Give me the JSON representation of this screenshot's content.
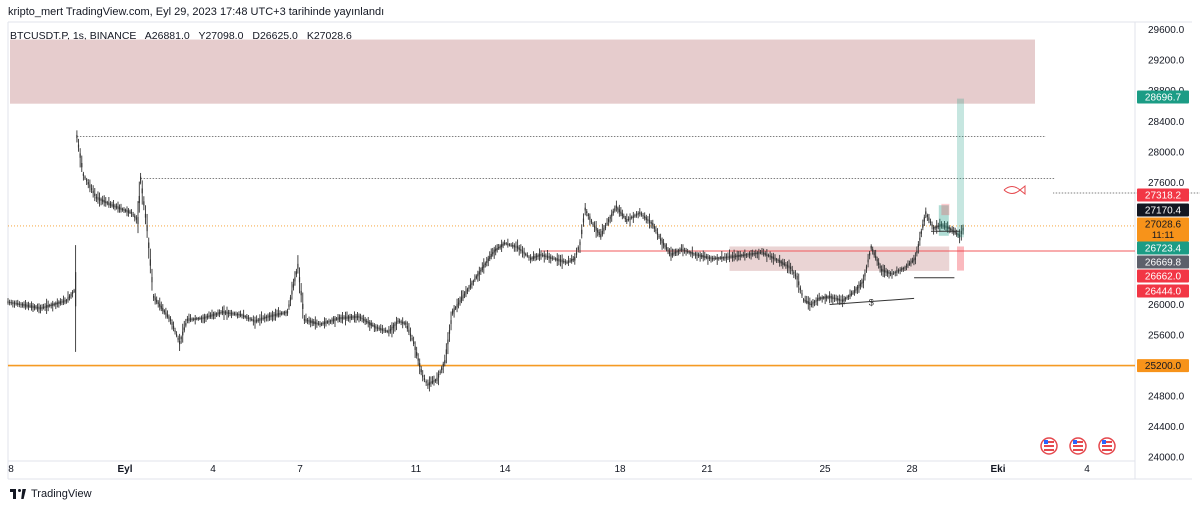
{
  "header": {
    "publisher": "kripto_mert TradingView.com, Eyl 29, 2023 17:48 UTC+3 tarihinde yayınlandı"
  },
  "legend": {
    "symbol": "BTCUSDT.P, 1s, BINANCE",
    "open": "A26881.0",
    "high": "Y27098.0",
    "low": "D26625.0",
    "close": "K27028.6"
  },
  "footer": {
    "brand": "TradingView"
  },
  "colors": {
    "candle": "#333333",
    "zone_fill": "#e6cccd",
    "support": "#f59a23",
    "red_line": "#f0585b",
    "green": "#1b9c85",
    "price_dotted": "#f59a23"
  },
  "chart_data": {
    "type": "candlestick",
    "x_tick_labels": [
      "8",
      "Eyl",
      "4",
      "7",
      "11",
      "14",
      "18",
      "21",
      "25",
      "28",
      "Eki",
      "4"
    ],
    "y_ticks": [
      24000,
      24400,
      24800,
      25200,
      25600,
      26000,
      26400,
      26800,
      27200,
      27600,
      28000,
      28400,
      28800,
      29200,
      29600
    ],
    "y_tick_labels": [
      "24000.0",
      "24400.0",
      "24800.0",
      "25200.0",
      "25600.0",
      "26000.0",
      "26400.0",
      "26800.0",
      "27200.0",
      "27600.0",
      "28000.0",
      "28400.0",
      "28800.0",
      "29200.0",
      "29600.0"
    ],
    "ylim": [
      23950,
      29700
    ],
    "path_points": [
      [
        0,
        26030
      ],
      [
        10,
        26000
      ],
      [
        25,
        25950
      ],
      [
        45,
        26050
      ],
      [
        52,
        26200
      ],
      [
        53,
        28200
      ],
      [
        58,
        27700
      ],
      [
        68,
        27400
      ],
      [
        80,
        27300
      ],
      [
        95,
        27200
      ],
      [
        100,
        27100
      ],
      [
        102,
        27650
      ],
      [
        107,
        27000
      ],
      [
        112,
        26100
      ],
      [
        125,
        25800
      ],
      [
        132,
        25500
      ],
      [
        138,
        25800
      ],
      [
        150,
        25820
      ],
      [
        165,
        25900
      ],
      [
        180,
        25860
      ],
      [
        190,
        25780
      ],
      [
        200,
        25840
      ],
      [
        215,
        25900
      ],
      [
        223,
        26500
      ],
      [
        228,
        25800
      ],
      [
        240,
        25740
      ],
      [
        255,
        25820
      ],
      [
        270,
        25840
      ],
      [
        283,
        25700
      ],
      [
        293,
        25640
      ],
      [
        300,
        25780
      ],
      [
        306,
        25750
      ],
      [
        312,
        25500
      ],
      [
        319,
        25060
      ],
      [
        323,
        24950
      ],
      [
        330,
        25020
      ],
      [
        336,
        25250
      ],
      [
        342,
        25900
      ],
      [
        350,
        26100
      ],
      [
        358,
        26300
      ],
      [
        366,
        26500
      ],
      [
        374,
        26700
      ],
      [
        382,
        26800
      ],
      [
        392,
        26750
      ],
      [
        402,
        26600
      ],
      [
        410,
        26650
      ],
      [
        420,
        26600
      ],
      [
        430,
        26550
      ],
      [
        436,
        26600
      ],
      [
        440,
        26800
      ],
      [
        444,
        27250
      ],
      [
        450,
        27050
      ],
      [
        456,
        26900
      ],
      [
        462,
        27100
      ],
      [
        468,
        27280
      ],
      [
        476,
        27100
      ],
      [
        486,
        27200
      ],
      [
        496,
        27050
      ],
      [
        502,
        26850
      ],
      [
        510,
        26650
      ],
      [
        518,
        26720
      ],
      [
        530,
        26650
      ],
      [
        542,
        26600
      ],
      [
        555,
        26620
      ],
      [
        568,
        26650
      ],
      [
        580,
        26680
      ],
      [
        590,
        26600
      ],
      [
        602,
        26480
      ],
      [
        607,
        26350
      ],
      [
        612,
        26060
      ],
      [
        618,
        26000
      ],
      [
        624,
        26080
      ],
      [
        632,
        26100
      ],
      [
        642,
        26050
      ],
      [
        650,
        26150
      ],
      [
        658,
        26300
      ],
      [
        664,
        26750
      ],
      [
        672,
        26450
      ],
      [
        680,
        26400
      ],
      [
        690,
        26480
      ],
      [
        698,
        26600
      ],
      [
        706,
        27200
      ],
      [
        712,
        27000
      ],
      [
        718,
        27040
      ],
      [
        724,
        27000
      ],
      [
        732,
        26900
      ],
      [
        736,
        27030
      ]
    ],
    "annotations": {
      "sell_zone": [
        28630,
        29470
      ],
      "resistance_lines": [
        28200,
        27650,
        27460
      ],
      "support_line": 25200,
      "range_box": [
        26440,
        26760
      ],
      "red_level": 26700,
      "current_price_dotted": 27028.6,
      "target_bar": [
        26880,
        28696.7
      ],
      "low_label": "$"
    },
    "price_badges": [
      {
        "label": "28696.7",
        "value": 28696.7,
        "color": "#1b9c85",
        "text_color": "#ffffff"
      },
      {
        "label": "27318.2",
        "value": 27318.2,
        "color": "#f23645",
        "text_color": "#ffffff"
      },
      {
        "label": "27170.4",
        "value": 27170.4,
        "color": "#131722",
        "text_color": "#ffffff"
      },
      {
        "label": "27028.6",
        "value": 27028.6,
        "color": "#f7931a",
        "text_color": "#131722",
        "sub": "11:11"
      },
      {
        "label": "26723.4",
        "value": 26723.4,
        "color": "#1b9c85",
        "text_color": "#ffffff"
      },
      {
        "label": "26669.8",
        "value": 26669.8,
        "color": "#5d606b",
        "text_color": "#ffffff"
      },
      {
        "label": "26662.0",
        "value": 26662.0,
        "color": "#f23645",
        "text_color": "#ffffff"
      },
      {
        "label": "26444.0",
        "value": 26444.0,
        "color": "#f23645",
        "text_color": "#ffffff"
      },
      {
        "label": "25200.0",
        "value": 25200.0,
        "color": "#f7931a",
        "text_color": "#131722"
      }
    ],
    "event_icons": [
      "us-flag-event-icon",
      "us-flag-event-icon",
      "us-flag-event-icon"
    ]
  }
}
